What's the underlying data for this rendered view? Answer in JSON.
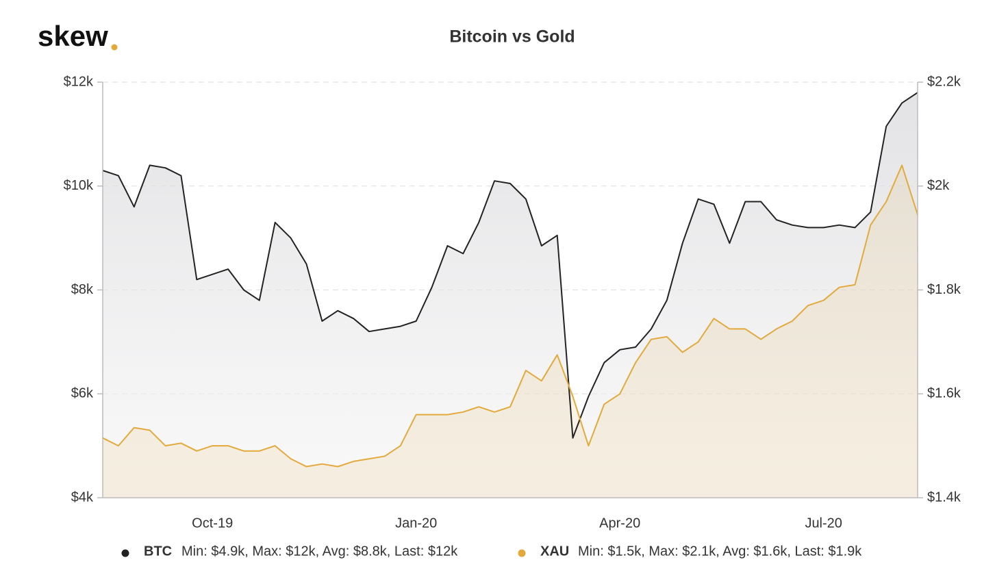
{
  "logo": "skew",
  "chart_data": {
    "type": "line",
    "title": "Bitcoin vs Gold",
    "categories": [
      null,
      null,
      null,
      null,
      null,
      null,
      null,
      "Oct-19",
      null,
      null,
      null,
      null,
      null,
      null,
      null,
      null,
      null,
      null,
      null,
      null,
      "Jan-20",
      null,
      null,
      null,
      null,
      null,
      null,
      null,
      null,
      null,
      null,
      null,
      null,
      "Apr-20",
      null,
      null,
      null,
      null,
      null,
      null,
      null,
      null,
      null,
      null,
      null,
      null,
      "Jul-20",
      null,
      null,
      null,
      null,
      null,
      null
    ],
    "series": [
      {
        "name": "BTC",
        "color": "#222222",
        "axis": "y",
        "stats": "Min: $4.9k, Max: $12k, Avg: $8.8k, Last: $12k",
        "values": [
          10300,
          10200,
          9600,
          10400,
          10350,
          10200,
          8200,
          8300,
          8400,
          8000,
          7800,
          9300,
          9000,
          8500,
          7400,
          7600,
          7450,
          7200,
          7250,
          7300,
          7400,
          8050,
          8850,
          8700,
          9300,
          10100,
          10050,
          9750,
          8850,
          9050,
          5150,
          5950,
          6600,
          6850,
          6900,
          7250,
          7800,
          8900,
          9750,
          9650,
          8900,
          9700,
          9700,
          9350,
          9250,
          9200,
          9200,
          9250,
          9200,
          9500,
          11150,
          11600,
          11800
        ]
      },
      {
        "name": "XAU",
        "color": "#e3a93b",
        "axis": "y2",
        "stats": "Min: $1.5k, Max: $2.1k, Avg: $1.6k, Last: $1.9k",
        "values": [
          1515,
          1500,
          1535,
          1530,
          1500,
          1505,
          1490,
          1500,
          1500,
          1490,
          1490,
          1500,
          1475,
          1460,
          1465,
          1460,
          1470,
          1475,
          1480,
          1500,
          1560,
          1560,
          1560,
          1565,
          1575,
          1565,
          1575,
          1645,
          1625,
          1675,
          1595,
          1500,
          1580,
          1600,
          1660,
          1705,
          1710,
          1680,
          1700,
          1745,
          1725,
          1725,
          1705,
          1725,
          1740,
          1770,
          1780,
          1805,
          1810,
          1925,
          1970,
          2040,
          1945
        ]
      }
    ],
    "ylim": [
      4000,
      12000
    ],
    "yticks": [
      {
        "value": 4000,
        "label": "$4k"
      },
      {
        "value": 6000,
        "label": "$6k"
      },
      {
        "value": 8000,
        "label": "$8k"
      },
      {
        "value": 10000,
        "label": "$10k"
      },
      {
        "value": 12000,
        "label": "$12k"
      }
    ],
    "y2lim": [
      1400,
      2200
    ],
    "y2ticks": [
      {
        "value": 1400,
        "label": "$1.4k"
      },
      {
        "value": 1600,
        "label": "$1.6k"
      },
      {
        "value": 1800,
        "label": "$1.8k"
      },
      {
        "value": 2000,
        "label": "$2k"
      },
      {
        "value": 2200,
        "label": "$2.2k"
      }
    ],
    "grid": true
  }
}
